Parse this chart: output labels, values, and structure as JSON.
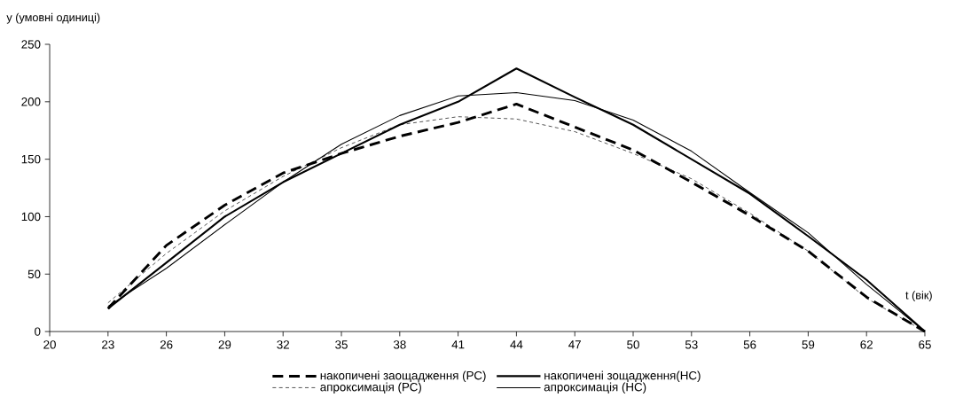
{
  "chart_data": {
    "type": "line",
    "xlabel": "t (вік)",
    "ylabel": "y (умовні одиниці)",
    "x": [
      23,
      26,
      29,
      32,
      35,
      38,
      41,
      44,
      47,
      50,
      53,
      56,
      59,
      62,
      65
    ],
    "series": [
      {
        "name": "накопичені заощадження (РС)",
        "color": "#000000",
        "line_style": "dashed",
        "values": [
          20,
          75,
          110,
          138,
          155,
          170,
          182,
          198,
          178,
          158,
          130,
          101,
          70,
          30,
          0
        ]
      },
      {
        "name": "накопичені зощадження(НС)",
        "color": "#000000",
        "line_style": "solid",
        "values": [
          20,
          60,
          100,
          130,
          155,
          180,
          200,
          229,
          204,
          180,
          150,
          120,
          83,
          45,
          0
        ]
      },
      {
        "name": "апроксимація (РС)",
        "color": "#000000",
        "line_style": "dashed",
        "values": [
          25,
          68,
          105,
          135,
          160,
          180,
          187,
          185,
          174,
          155,
          133,
          103,
          70,
          29,
          0
        ]
      },
      {
        "name": "апроксимація (НС)",
        "color": "#000000",
        "line_style": "solid",
        "values": [
          22,
          55,
          93,
          130,
          163,
          188,
          205,
          208,
          201,
          184,
          157,
          121,
          86,
          41,
          0
        ]
      }
    ],
    "xlim": [
      20,
      65
    ],
    "xticks": [
      20,
      23,
      26,
      29,
      32,
      35,
      38,
      41,
      44,
      47,
      50,
      53,
      56,
      59,
      62,
      65
    ],
    "ylim": [
      0,
      250
    ],
    "yticks": [
      0,
      50,
      100,
      150,
      200,
      250
    ],
    "grid": false,
    "legend": "bottom",
    "marker": "none"
  }
}
